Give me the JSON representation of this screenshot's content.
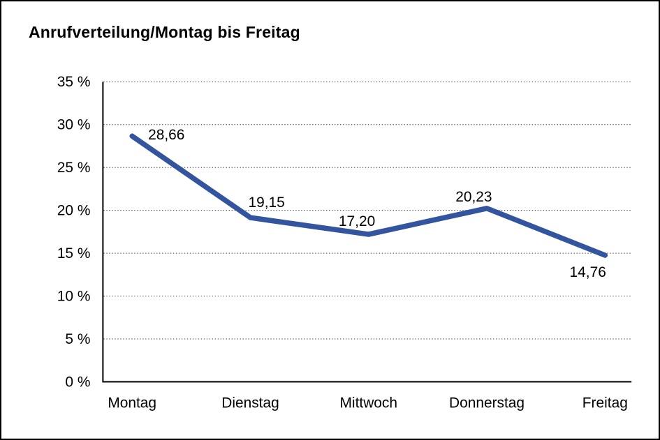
{
  "chart_data": {
    "type": "line",
    "title": "Anrufverteilung/Montag bis Freitag",
    "categories": [
      "Montag",
      "Dienstag",
      "Mittwoch",
      "Donnerstag",
      "Freitag"
    ],
    "values": [
      28.66,
      19.15,
      17.2,
      20.23,
      14.76
    ],
    "value_labels": [
      "28,66",
      "19,15",
      "17,20",
      "20,23",
      "14,76"
    ],
    "xlabel": "",
    "ylabel": "",
    "ylim": [
      0,
      35
    ],
    "yticks": [
      0,
      5,
      10,
      15,
      20,
      25,
      30,
      35
    ],
    "ytick_labels": [
      "0 %",
      "5 %",
      "10 %",
      "15 %",
      "20 %",
      "25 %",
      "30 %",
      "35 %"
    ],
    "grid": "horizontal-dotted",
    "legend": "none",
    "line_color": "#33549E",
    "axis_color": "#000000",
    "text_color": "#000000"
  }
}
